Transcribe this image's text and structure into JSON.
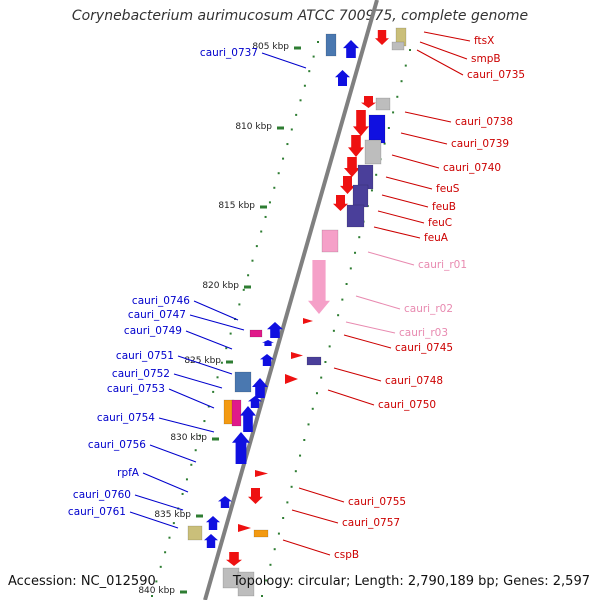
{
  "title": "Corynebacterium aurimucosum ATCC 700975, complete genome",
  "footer": {
    "accession": "Accession: NC_012590",
    "summary": "Topology: circular; Length: 2,790,189 bp; Genes: 2,597"
  },
  "colors": {
    "backbone": "#808080",
    "tick": "#2e7d32",
    "left_label": "#0000cc",
    "right_label": "#cc0000",
    "rna_label": "#e88ab0"
  },
  "ruler": [
    {
      "label": "805 kbp"
    },
    {
      "label": "810 kbp"
    },
    {
      "label": "815 kbp"
    },
    {
      "label": "820 kbp"
    },
    {
      "label": "825 kbp"
    },
    {
      "label": "830 kbp"
    },
    {
      "label": "835 kbp"
    },
    {
      "label": "840 kbp"
    }
  ],
  "left_labels": [
    {
      "label": "cauri_0737"
    },
    {
      "label": "cauri_0746"
    },
    {
      "label": "cauri_0747"
    },
    {
      "label": "cauri_0749"
    },
    {
      "label": "cauri_0751"
    },
    {
      "label": "cauri_0752"
    },
    {
      "label": "cauri_0753"
    },
    {
      "label": "cauri_0754"
    },
    {
      "label": "cauri_0756"
    },
    {
      "label": "rpfA"
    },
    {
      "label": "cauri_0760"
    },
    {
      "label": "cauri_0761"
    }
  ],
  "right_labels": [
    {
      "label": "ftsX"
    },
    {
      "label": "smpB"
    },
    {
      "label": "cauri_0735"
    },
    {
      "label": "cauri_0738"
    },
    {
      "label": "cauri_0739"
    },
    {
      "label": "cauri_0740"
    },
    {
      "label": "feuS"
    },
    {
      "label": "feuB"
    },
    {
      "label": "feuC"
    },
    {
      "label": "feuA"
    },
    {
      "label": "cauri_r01"
    },
    {
      "label": "cauri_r02"
    },
    {
      "label": "cauri_r03"
    },
    {
      "label": "cauri_0745"
    },
    {
      "label": "cauri_0748"
    },
    {
      "label": "cauri_0750"
    },
    {
      "label": "cauri_0755"
    },
    {
      "label": "cauri_0757"
    },
    {
      "label": "cspB"
    }
  ]
}
